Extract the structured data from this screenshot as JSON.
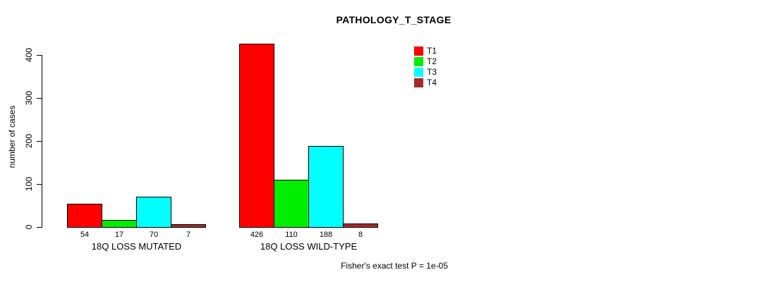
{
  "chart_data": {
    "type": "bar",
    "title": "PATHOLOGY_T_STAGE",
    "xlabel": "",
    "ylabel": "number of cases",
    "ylim": [
      0,
      440
    ],
    "yticks": [
      0,
      100,
      200,
      300,
      400
    ],
    "grid": false,
    "legend_position": "top-right-inside",
    "categories": [
      "18Q LOSS MUTATED",
      "18Q LOSS WILD-TYPE"
    ],
    "series": [
      {
        "name": "T1",
        "color": "#ff0000",
        "values": [
          54,
          426
        ]
      },
      {
        "name": "T2",
        "color": "#00ee00",
        "values": [
          17,
          110
        ]
      },
      {
        "name": "T3",
        "color": "#00ffff",
        "values": [
          70,
          188
        ]
      },
      {
        "name": "T4",
        "color": "#a52a2a",
        "values": [
          7,
          8
        ]
      }
    ],
    "bar_value_labels": true,
    "annotation": "Fisher's exact test P = 1e-05"
  }
}
